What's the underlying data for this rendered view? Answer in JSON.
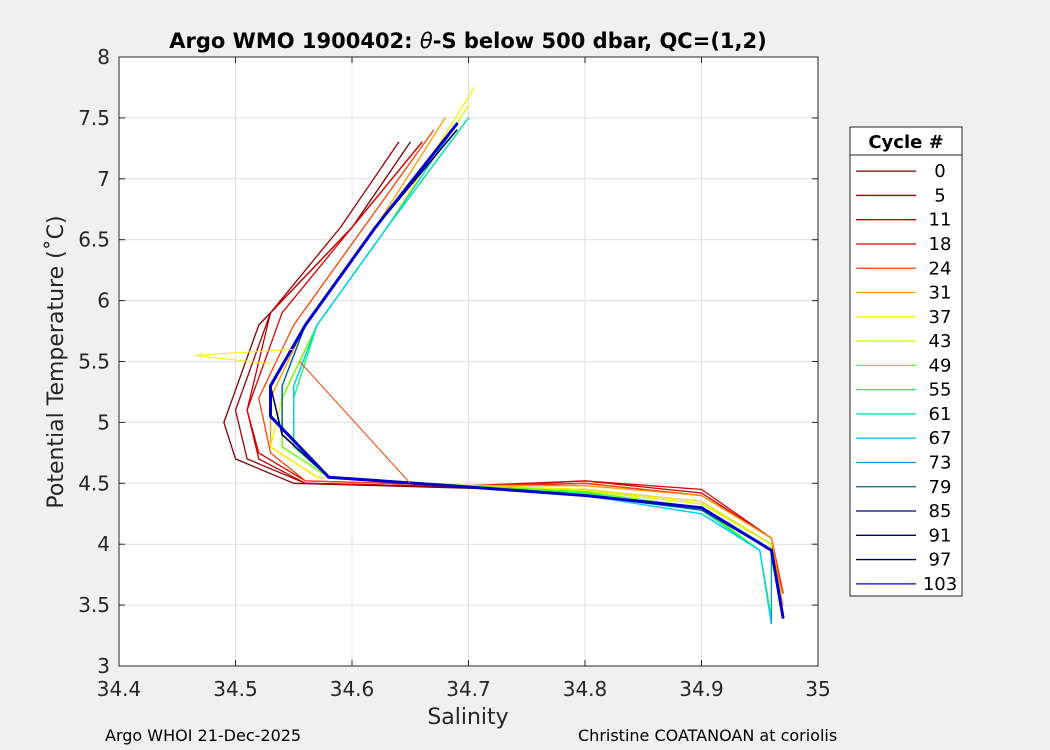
{
  "chart_data": {
    "type": "line",
    "title_parts": [
      "Argo WMO 1900402: ",
      "θ",
      "-S below 500 dbar,  QC=(1,2)"
    ],
    "xlabel": "Salinity",
    "ylabel": "Potential Temperature (˚C)",
    "xlim": [
      34.4,
      35
    ],
    "ylim": [
      3,
      8
    ],
    "x_ticks": [
      34.4,
      34.5,
      34.6,
      34.7,
      34.8,
      34.9,
      35
    ],
    "x_tick_labels": [
      "34.4",
      "34.5",
      "34.6",
      "34.7",
      "34.8",
      "34.9",
      "35"
    ],
    "y_ticks": [
      3,
      3.5,
      4,
      4.5,
      5,
      5.5,
      6,
      6.5,
      7,
      7.5,
      8
    ],
    "y_tick_labels": [
      "3",
      "3.5",
      "4",
      "4.5",
      "5",
      "5.5",
      "6",
      "6.5",
      "7",
      "7.5",
      "8"
    ],
    "grid": true,
    "legend_title": "Cycle #",
    "legend_position": "outside-right",
    "series": [
      {
        "name": "0",
        "color": "#800000",
        "x": [
          34.65,
          34.6,
          34.52,
          34.49,
          34.5,
          34.55,
          34.7,
          34.8,
          34.9,
          34.96,
          34.97
        ],
        "y": [
          7.3,
          6.6,
          5.8,
          5.0,
          4.7,
          4.5,
          4.46,
          4.45,
          4.35,
          4.0,
          3.6
        ]
      },
      {
        "name": "5",
        "color": "#a00000",
        "x": [
          34.64,
          34.59,
          34.53,
          34.5,
          34.51,
          34.56,
          34.7,
          34.8,
          34.9,
          34.96,
          34.97
        ],
        "y": [
          7.3,
          6.6,
          5.9,
          5.1,
          4.7,
          4.5,
          4.47,
          4.5,
          4.4,
          4.05,
          3.6
        ]
      },
      {
        "name": "11",
        "color": "#c00000",
        "x": [
          34.66,
          34.6,
          34.53,
          34.51,
          34.52,
          34.56,
          34.7,
          34.8,
          34.9,
          34.96,
          34.97
        ],
        "y": [
          7.3,
          6.6,
          5.9,
          5.1,
          4.7,
          4.5,
          4.47,
          4.52,
          4.42,
          4.05,
          3.6
        ]
      },
      {
        "name": "18",
        "color": "#e00000",
        "x": [
          34.66,
          34.6,
          34.54,
          34.51,
          34.52,
          34.56,
          34.7,
          34.8,
          34.9,
          34.96,
          34.97
        ],
        "y": [
          7.3,
          6.6,
          5.9,
          5.1,
          4.75,
          4.52,
          4.48,
          4.52,
          4.45,
          4.05,
          3.6
        ]
      },
      {
        "name": "24",
        "color": "#ff4000",
        "x": [
          34.67,
          34.61,
          34.55,
          34.52,
          34.53,
          34.56,
          34.7,
          34.8,
          34.9,
          34.96,
          34.97
        ],
        "y": [
          7.4,
          6.6,
          5.8,
          5.2,
          4.75,
          4.52,
          4.48,
          4.5,
          4.4,
          4.05,
          3.6
        ]
      },
      {
        "name": "31",
        "color": "#ff9900",
        "x": [
          34.68,
          34.62,
          34.56,
          34.53,
          34.53,
          34.57,
          34.7,
          34.8,
          34.9,
          34.96,
          34.97
        ],
        "y": [
          7.5,
          6.6,
          5.8,
          5.2,
          4.8,
          4.55,
          4.48,
          4.48,
          4.4,
          4.05,
          3.5
        ]
      },
      {
        "name": "37",
        "color": "#ffee00",
        "x": [
          34.705,
          34.63,
          34.57,
          34.54,
          34.53,
          34.57,
          34.7,
          34.8,
          34.9,
          34.96,
          34.96
        ],
        "y": [
          7.75,
          6.6,
          5.8,
          5.2,
          4.8,
          4.55,
          4.48,
          4.45,
          4.35,
          4.0,
          3.4
        ]
      },
      {
        "name": "43",
        "color": "#ccff00",
        "x": [
          34.7,
          34.63,
          34.57,
          34.54,
          34.54,
          34.58,
          34.7,
          34.8,
          34.9,
          34.96,
          34.96
        ],
        "y": [
          7.6,
          6.6,
          5.8,
          5.2,
          4.8,
          4.55,
          4.48,
          4.44,
          4.33,
          4.0,
          3.4
        ]
      },
      {
        "name": "49",
        "color": "#66ff00",
        "x": [
          34.7,
          34.63,
          34.57,
          34.54,
          34.54,
          34.58,
          34.7,
          34.8,
          34.9,
          34.95,
          34.96
        ],
        "y": [
          7.5,
          6.6,
          5.8,
          5.2,
          4.8,
          4.55,
          4.48,
          4.43,
          4.3,
          3.95,
          3.4
        ]
      },
      {
        "name": "55",
        "color": "#00ff66",
        "x": [
          34.7,
          34.63,
          34.57,
          34.55,
          34.55,
          34.58,
          34.7,
          34.8,
          34.9,
          34.95,
          34.96
        ],
        "y": [
          7.5,
          6.6,
          5.8,
          5.2,
          4.8,
          4.55,
          4.47,
          4.42,
          4.28,
          3.95,
          3.35
        ]
      },
      {
        "name": "61",
        "color": "#00e6b3",
        "x": [
          34.7,
          34.63,
          34.57,
          34.55,
          34.55,
          34.58,
          34.7,
          34.8,
          34.9,
          34.95,
          34.96
        ],
        "y": [
          7.5,
          6.6,
          5.8,
          5.3,
          4.85,
          4.55,
          4.47,
          4.4,
          4.25,
          3.95,
          3.35
        ]
      },
      {
        "name": "67",
        "color": "#00ccff",
        "x": [
          34.69,
          34.63,
          34.57,
          34.55,
          34.55,
          34.58,
          34.7,
          34.8,
          34.9,
          34.95,
          34.96
        ],
        "y": [
          7.45,
          6.6,
          5.8,
          5.3,
          4.85,
          4.55,
          4.47,
          4.4,
          4.25,
          3.95,
          3.35
        ]
      },
      {
        "name": "73",
        "color": "#0099e6",
        "x": [
          34.69,
          34.62,
          34.56,
          34.54,
          34.54,
          34.58,
          34.7,
          34.8,
          34.9,
          34.96,
          34.96
        ],
        "y": [
          7.45,
          6.6,
          5.8,
          5.3,
          4.9,
          4.55,
          4.47,
          4.4,
          4.28,
          3.95,
          3.35
        ]
      },
      {
        "name": "79",
        "color": "#006680",
        "x": [
          34.69,
          34.62,
          34.56,
          34.54,
          34.54,
          34.58,
          34.7,
          34.8,
          34.9,
          34.96,
          34.97
        ],
        "y": [
          7.45,
          6.6,
          5.8,
          5.3,
          4.9,
          4.55,
          4.47,
          4.4,
          4.28,
          3.95,
          3.4
        ]
      },
      {
        "name": "85",
        "color": "#000080",
        "x": [
          34.69,
          34.62,
          34.56,
          34.53,
          34.54,
          34.58,
          34.7,
          34.8,
          34.9,
          34.96,
          34.97
        ],
        "y": [
          7.4,
          6.6,
          5.8,
          5.3,
          4.9,
          4.55,
          4.47,
          4.4,
          4.3,
          3.95,
          3.4
        ]
      },
      {
        "name": "91",
        "color": "#000066",
        "x": [
          34.69,
          34.62,
          34.56,
          34.53,
          34.54,
          34.58,
          34.7,
          34.8,
          34.9,
          34.96,
          34.97
        ],
        "y": [
          7.4,
          6.6,
          5.8,
          5.3,
          4.9,
          4.55,
          4.47,
          4.4,
          4.3,
          3.95,
          3.4
        ]
      },
      {
        "name": "97",
        "color": "#000055",
        "x": [
          34.69,
          34.62,
          34.56,
          34.53,
          34.54,
          34.58,
          34.7,
          34.8,
          34.9,
          34.96,
          34.97
        ],
        "y": [
          7.4,
          6.6,
          5.8,
          5.3,
          4.9,
          4.55,
          4.47,
          4.4,
          4.3,
          3.95,
          3.4
        ]
      },
      {
        "name": "103",
        "color": "#0000cc",
        "x": [
          34.69,
          34.62,
          34.56,
          34.53,
          34.53,
          34.58,
          34.7,
          34.8,
          34.9,
          34.96,
          34.97
        ],
        "y": [
          7.45,
          6.6,
          5.8,
          5.3,
          5.05,
          4.55,
          4.47,
          4.4,
          4.3,
          3.95,
          3.4
        ]
      }
    ],
    "outliers": [
      {
        "name": "cycle-37-spike",
        "color": "#ffee00",
        "x": [
          34.55,
          34.465,
          34.53
        ],
        "y": [
          5.6,
          5.55,
          5.48
        ]
      },
      {
        "name": "cycle-24-diagonal",
        "color": "#ff4000",
        "x": [
          34.555,
          34.65
        ],
        "y": [
          5.5,
          4.5
        ]
      }
    ]
  },
  "footer": {
    "left": "Argo WHOI 21-Dec-2025",
    "right": "Christine COATANOAN at coriolis"
  }
}
